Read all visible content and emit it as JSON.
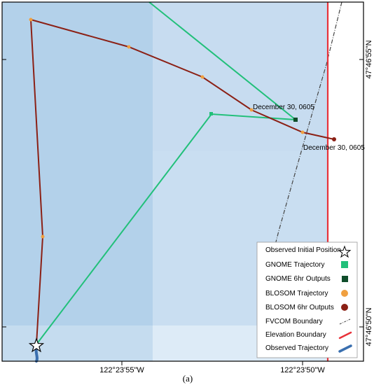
{
  "map": {
    "caption": "(a)",
    "lon_ticks": [
      "122°23'55\"W",
      "122°23'50\"W"
    ],
    "lat_ticks": [
      "47°46'55\"N",
      "47°46'50\"N"
    ],
    "annotations": [
      "December 30, 0605",
      "December 30, 0605"
    ],
    "colors": {
      "gnome": "#22c07a",
      "gnome_outputs": "#0f4d2a",
      "blosom": "#8b2015",
      "blosom_outputs_marker": "#f0a040",
      "fvcom_boundary": "#444444",
      "elevation_boundary": "#e8323a",
      "observed_trajectory": "#3a6faf"
    }
  },
  "legend": {
    "items": [
      {
        "label": "Observed Initial Position",
        "symbol": "star-icon"
      },
      {
        "label": "GNOME Trajectory",
        "symbol": "green-square-icon"
      },
      {
        "label": "GNOME 6hr Outputs",
        "symbol": "dark-green-square-icon"
      },
      {
        "label": "BLOSOM Trajectory",
        "symbol": "orange-circle-icon"
      },
      {
        "label": "BLOSOM 6hr Outputs",
        "symbol": "dark-red-circle-icon"
      },
      {
        "label": "FVCOM Boundary",
        "symbol": "dash-dot-line-icon"
      },
      {
        "label": "Elevation Boundary",
        "symbol": "red-line-icon"
      },
      {
        "label": "Observed Trajectory",
        "symbol": "blue-line-icon"
      }
    ]
  }
}
